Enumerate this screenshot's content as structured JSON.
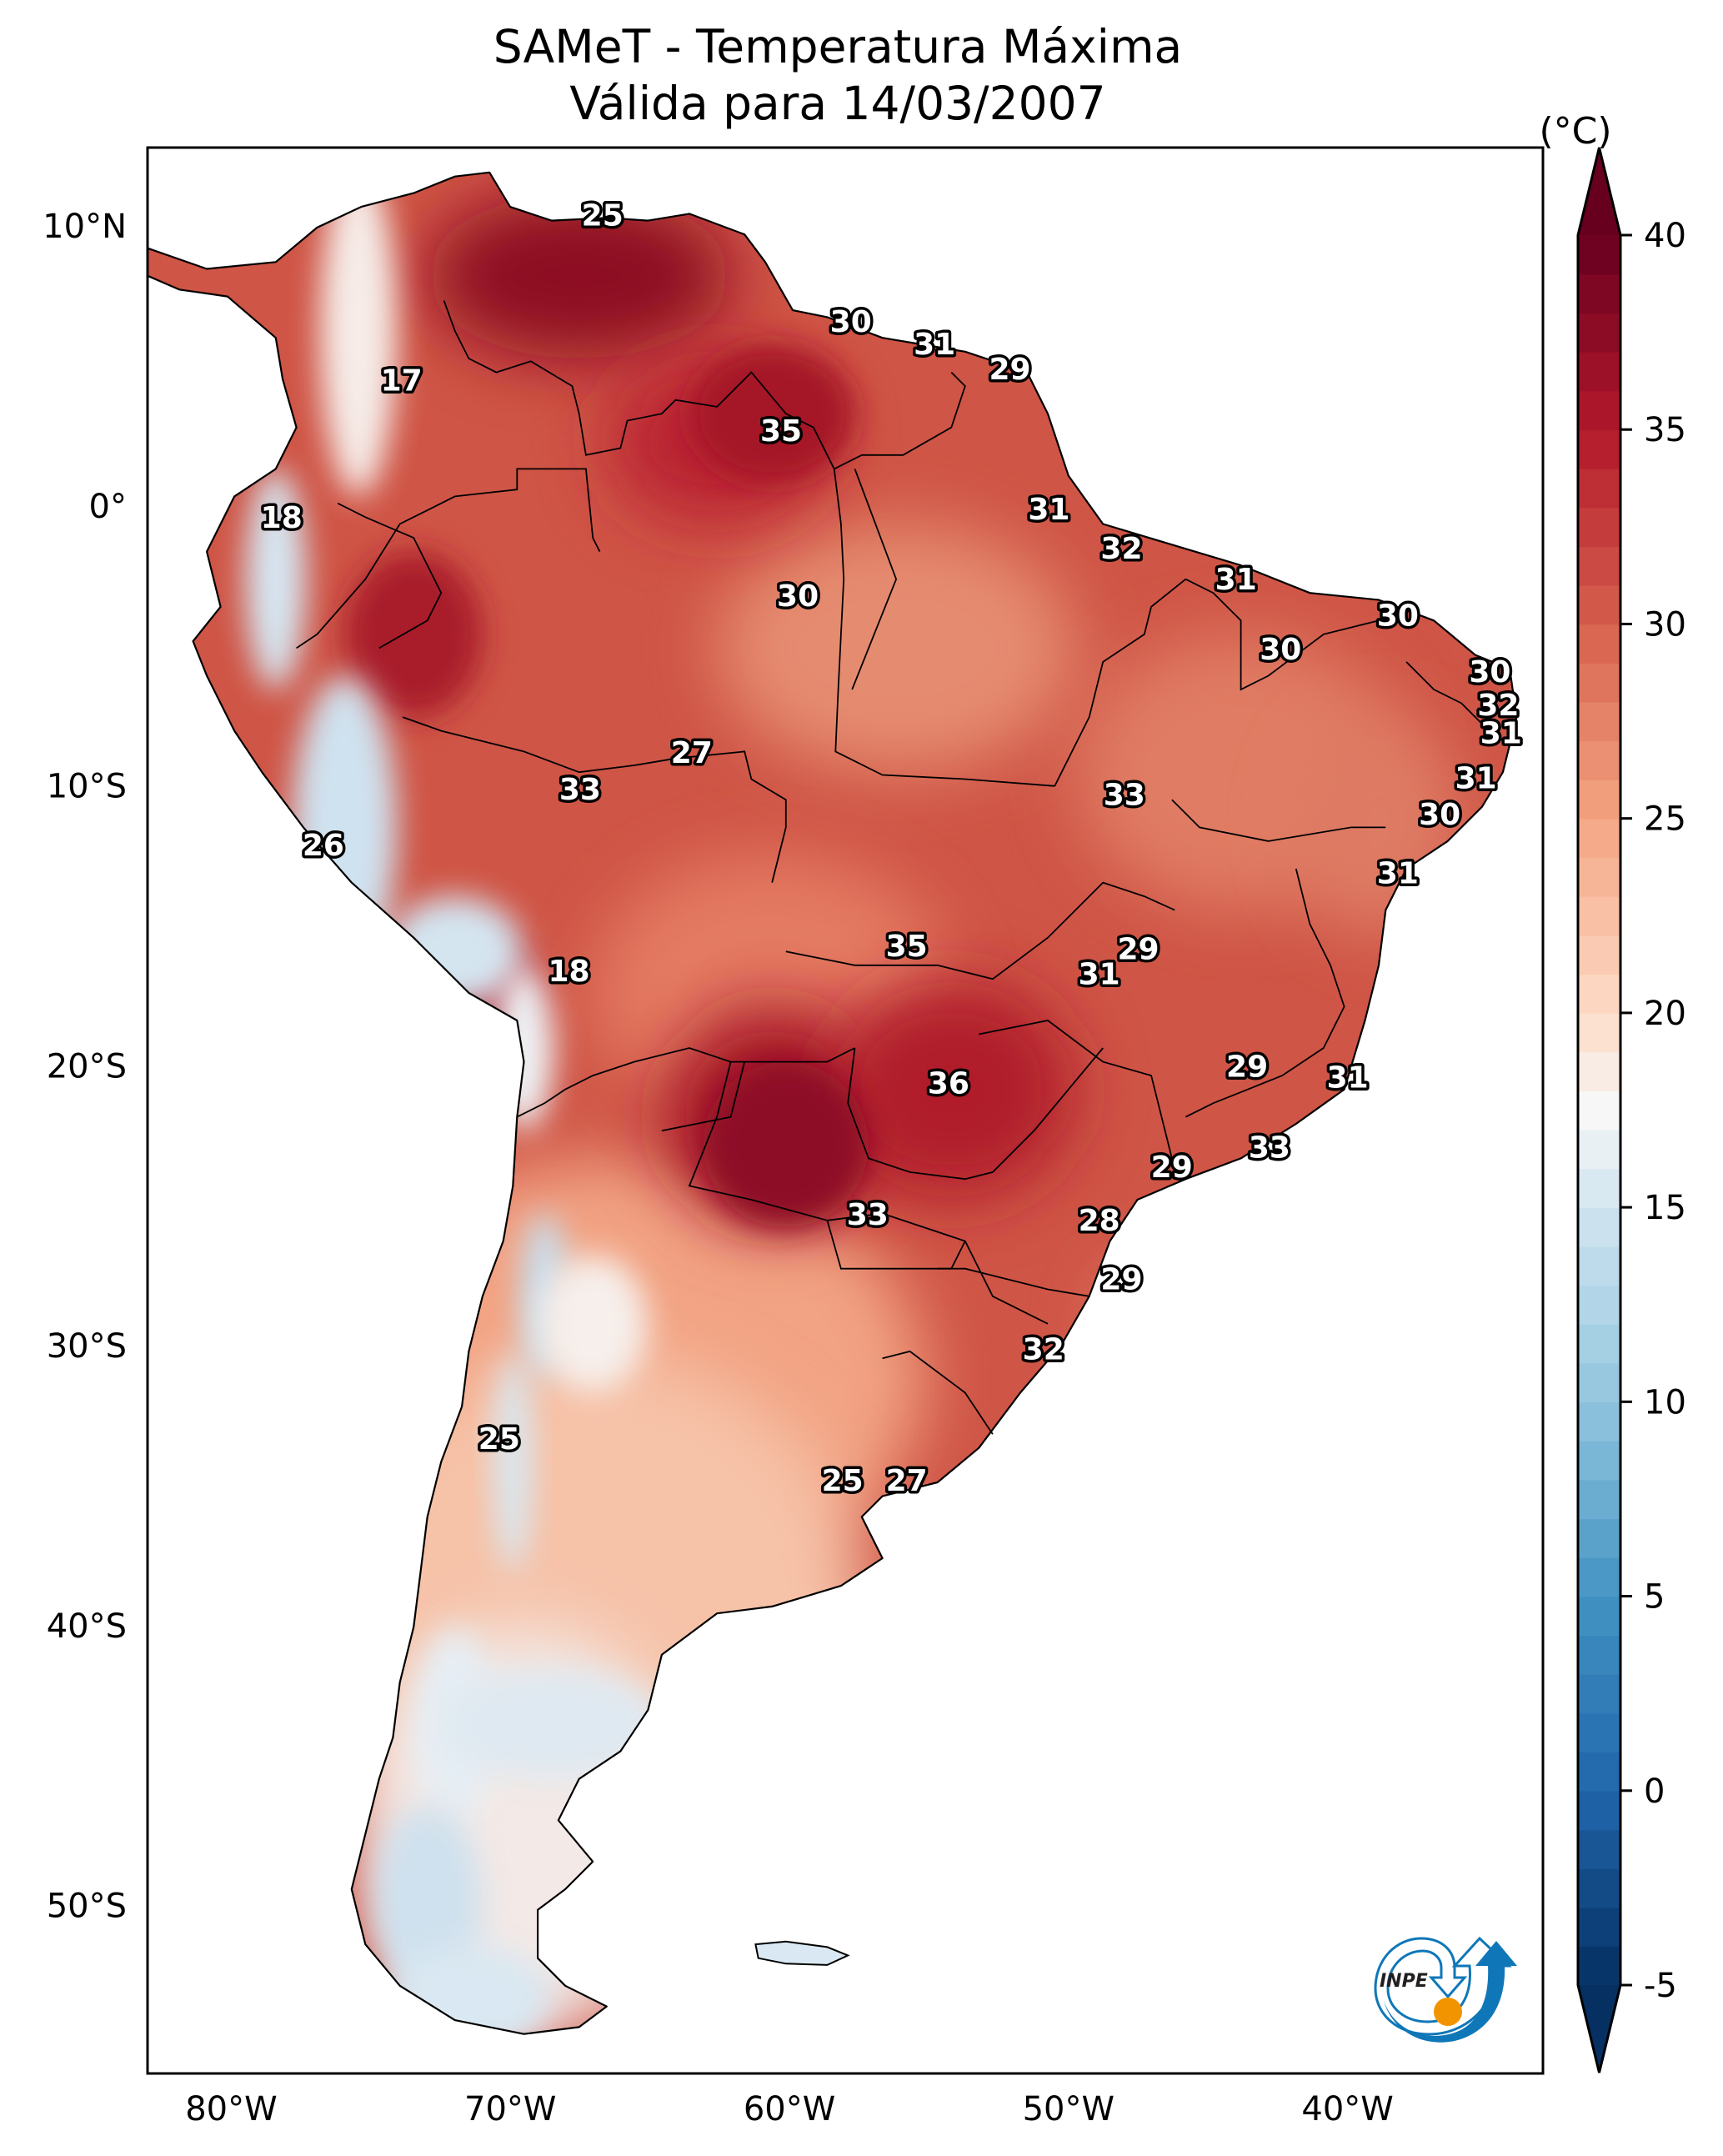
{
  "title": {
    "line1": "SAMeT - Temperatura Máxima",
    "line2": "Válida para 14/03/2007"
  },
  "colorbar": {
    "unit": "(°C)",
    "min": -5,
    "max": 40,
    "extend": "both",
    "ticks": [
      {
        "value": 40,
        "label": "40"
      },
      {
        "value": 35,
        "label": "35"
      },
      {
        "value": 30,
        "label": "30"
      },
      {
        "value": 25,
        "label": "25"
      },
      {
        "value": 20,
        "label": "20"
      },
      {
        "value": 15,
        "label": "15"
      },
      {
        "value": 10,
        "label": "10"
      },
      {
        "value": 5,
        "label": "5"
      },
      {
        "value": 0,
        "label": "0"
      },
      {
        "value": -5,
        "label": "-5"
      }
    ],
    "colormap": "RdBu_r",
    "colors": {
      "cold_extreme": "#053061",
      "cold": "#2166ac",
      "cool": "#92c5de",
      "neutral": "#f7f7f7",
      "warm": "#f4a582",
      "hot": "#d6604d",
      "very_hot": "#b2182b",
      "hot_extreme": "#67001f"
    }
  },
  "chart_data": {
    "type": "heatmap",
    "title": "SAMeT - Temperatura Máxima — Válida para 14/03/2007",
    "variable": "Temperatura Máxima",
    "unit": "°C",
    "date": "14/03/2007",
    "projection": "PlateCarree",
    "lon_range": [
      -83,
      -33
    ],
    "lat_range": [
      -56,
      12.8
    ],
    "grid": false,
    "x_ticks": [
      {
        "value": -80,
        "label": "80°W"
      },
      {
        "value": -70,
        "label": "70°W"
      },
      {
        "value": -60,
        "label": "60°W"
      },
      {
        "value": -50,
        "label": "50°W"
      },
      {
        "value": -40,
        "label": "40°W"
      }
    ],
    "y_ticks": [
      {
        "value": 10,
        "label": "10°N"
      },
      {
        "value": 0,
        "label": "0°"
      },
      {
        "value": -10,
        "label": "10°S"
      },
      {
        "value": -20,
        "label": "20°S"
      },
      {
        "value": -30,
        "label": "30°S"
      },
      {
        "value": -40,
        "label": "40°S"
      },
      {
        "value": -50,
        "label": "50°S"
      }
    ],
    "value_range": [
      -5,
      40
    ],
    "legend": "colorbar-right",
    "station_labels": [
      {
        "lon": -66.7,
        "lat": 10.4,
        "value": "25"
      },
      {
        "lon": -57.8,
        "lat": 6.6,
        "value": "30"
      },
      {
        "lon": -54.8,
        "lat": 5.8,
        "value": "31"
      },
      {
        "lon": -52.1,
        "lat": 4.9,
        "value": "29"
      },
      {
        "lon": -73.9,
        "lat": 4.5,
        "value": "17"
      },
      {
        "lon": -60.3,
        "lat": 2.7,
        "value": "35"
      },
      {
        "lon": -78.2,
        "lat": -0.4,
        "value": "18"
      },
      {
        "lon": -50.7,
        "lat": -0.1,
        "value": "31"
      },
      {
        "lon": -48.1,
        "lat": -1.5,
        "value": "32"
      },
      {
        "lon": -44.0,
        "lat": -2.6,
        "value": "31"
      },
      {
        "lon": -59.7,
        "lat": -3.2,
        "value": "30"
      },
      {
        "lon": -38.2,
        "lat": -3.9,
        "value": "30"
      },
      {
        "lon": -42.4,
        "lat": -5.1,
        "value": "30"
      },
      {
        "lon": -34.9,
        "lat": -5.9,
        "value": "30"
      },
      {
        "lon": -34.6,
        "lat": -7.1,
        "value": "32"
      },
      {
        "lon": -34.5,
        "lat": -8.1,
        "value": "31"
      },
      {
        "lon": -63.5,
        "lat": -8.8,
        "value": "27"
      },
      {
        "lon": -67.5,
        "lat": -10.1,
        "value": "33"
      },
      {
        "lon": -48.0,
        "lat": -10.3,
        "value": "33"
      },
      {
        "lon": -35.4,
        "lat": -9.7,
        "value": "31"
      },
      {
        "lon": -36.7,
        "lat": -11.0,
        "value": "30"
      },
      {
        "lon": -76.7,
        "lat": -12.1,
        "value": "26"
      },
      {
        "lon": -38.2,
        "lat": -13.1,
        "value": "31"
      },
      {
        "lon": -55.8,
        "lat": -15.7,
        "value": "35"
      },
      {
        "lon": -47.5,
        "lat": -15.8,
        "value": "29"
      },
      {
        "lon": -48.9,
        "lat": -16.7,
        "value": "31"
      },
      {
        "lon": -67.9,
        "lat": -16.6,
        "value": "18"
      },
      {
        "lon": -43.6,
        "lat": -20.0,
        "value": "29"
      },
      {
        "lon": -54.3,
        "lat": -20.6,
        "value": "36"
      },
      {
        "lon": -40.0,
        "lat": -20.4,
        "value": "31"
      },
      {
        "lon": -42.8,
        "lat": -22.9,
        "value": "33"
      },
      {
        "lon": -46.3,
        "lat": -23.6,
        "value": "29"
      },
      {
        "lon": -57.2,
        "lat": -25.3,
        "value": "33"
      },
      {
        "lon": -48.9,
        "lat": -25.5,
        "value": "28"
      },
      {
        "lon": -48.1,
        "lat": -27.6,
        "value": "29"
      },
      {
        "lon": -50.9,
        "lat": -30.1,
        "value": "32"
      },
      {
        "lon": -70.4,
        "lat": -33.3,
        "value": "25"
      },
      {
        "lon": -58.1,
        "lat": -34.8,
        "value": "25"
      },
      {
        "lon": -55.8,
        "lat": -34.8,
        "value": "27"
      }
    ]
  },
  "logo": {
    "text": "INPE",
    "colors": {
      "blue": "#0f77b8",
      "orange": "#f29400",
      "text": "#231f20"
    }
  }
}
